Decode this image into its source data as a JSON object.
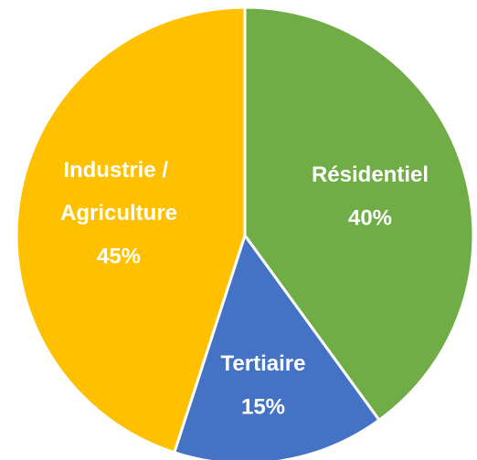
{
  "chart_data": {
    "type": "pie",
    "categories": [
      "Résidentiel",
      "Tertiaire",
      "Industrie / Agriculture"
    ],
    "values": [
      40,
      15,
      45
    ],
    "value_labels": [
      "40%",
      "15%",
      "45%"
    ],
    "colors": [
      "#70ad47",
      "#4472c4",
      "#ffc000"
    ]
  }
}
